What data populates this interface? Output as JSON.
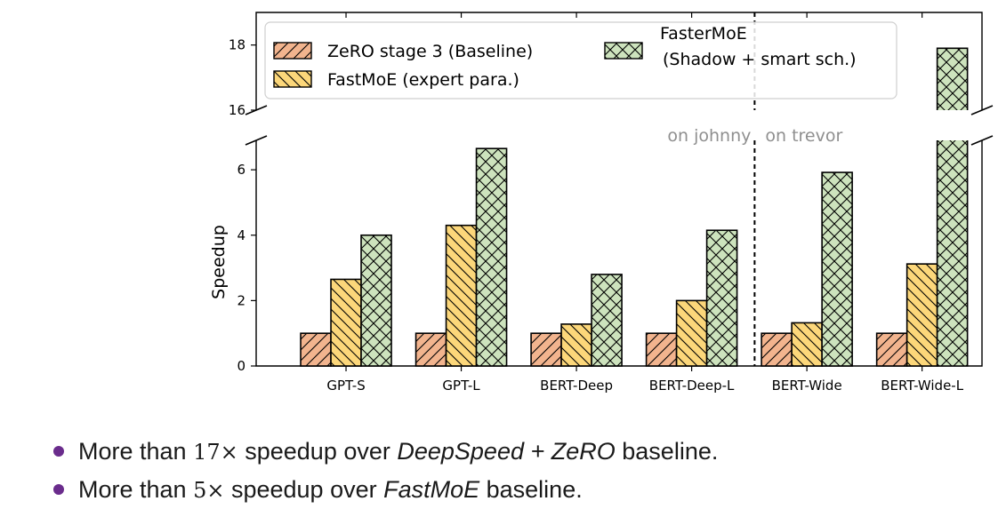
{
  "chart_data": {
    "type": "bar",
    "categories": [
      "GPT-S",
      "GPT-L",
      "BERT-Deep",
      "BERT-Deep-L",
      "BERT-Wide",
      "BERT-Wide-L"
    ],
    "series": [
      {
        "name": "ZeRO stage 3 (Baseline)",
        "values": [
          1.0,
          1.0,
          1.0,
          1.0,
          1.0,
          1.0
        ],
        "color": "#f2b48e",
        "hatch": "diagonal-up"
      },
      {
        "name": "FastMoE (expert para.)",
        "values": [
          2.65,
          4.3,
          1.28,
          2.0,
          1.32,
          3.12
        ],
        "color": "#fcd77a",
        "hatch": "diagonal-down"
      },
      {
        "name": "FasterMoE (Shadow + smart sch.)",
        "legend_lines": [
          "FasterMoE",
          "(Shadow + smart sch.)"
        ],
        "values": [
          4.0,
          6.65,
          2.8,
          4.15,
          5.92,
          17.9
        ],
        "color": "#cde3bd",
        "hatch": "cross"
      }
    ],
    "ylabel": "Speedup",
    "xlabel": "",
    "lower_ylim": [
      0,
      6.9
    ],
    "upper_ylim": [
      16,
      19
    ],
    "lower_yticks": [
      0,
      2,
      4,
      6
    ],
    "upper_yticks": [
      16,
      18
    ],
    "axis_break": true,
    "grid": false,
    "legend_placement": "top-left",
    "divider_after_category": 3,
    "annotations": [
      "on johnny",
      "on trevor"
    ]
  },
  "bullets": [
    {
      "prefix": "More than ",
      "math": "17×",
      "middle": " speedup over ",
      "emph": "DeepSpeed + ZeRO",
      "suffix": " baseline."
    },
    {
      "prefix": "More than ",
      "math": "5×",
      "middle": " speedup over ",
      "emph": "FastMoE",
      "suffix": " baseline."
    }
  ]
}
